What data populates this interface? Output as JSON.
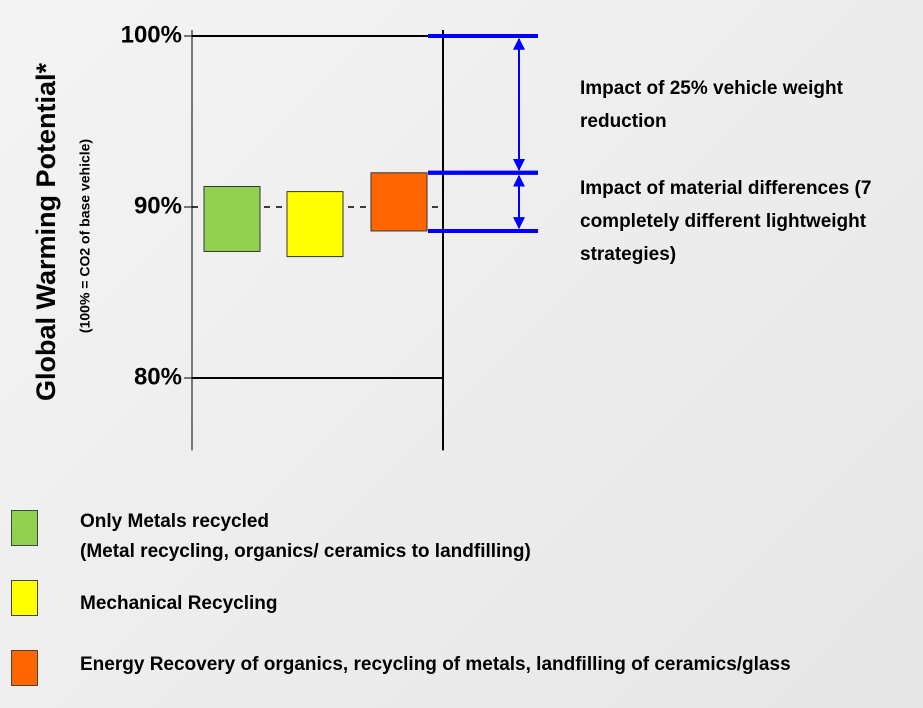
{
  "chart_data": {
    "type": "floating_bar",
    "y_label": "Global Warming Potential*",
    "y_sublabel": "(100% = CO2 of base vehicle)",
    "ylim": [
      76,
      100
    ],
    "yticks": [
      {
        "value": 100,
        "label": "100%",
        "line": "solid"
      },
      {
        "value": 90,
        "label": "90%",
        "line": "dashed"
      },
      {
        "value": 80,
        "label": "80%",
        "line": "solid"
      }
    ],
    "series": [
      {
        "name": "Only Metals recycled\n(Metal recycling, organics/ ceramics to landfilling)",
        "color": "#92d050",
        "low": 87.4,
        "high": 91.2
      },
      {
        "name": "Mechanical Recycling",
        "color": "#ffff00",
        "low": 87.1,
        "high": 90.9
      },
      {
        "name": "Energy Recovery of organics, recycling of metals, landfilling of ceramics/glass",
        "color": "#ff6600",
        "low": 88.6,
        "high": 92.0
      }
    ],
    "annotations": [
      {
        "text": "Impact of 25% vehicle weight reduction",
        "from": 100,
        "to": 92.0,
        "color": "#0000ff"
      },
      {
        "text": "Impact of material differences (7 completely different lightweight strategies)",
        "from": 92.0,
        "to": 88.6,
        "color": "#0000ff"
      }
    ]
  }
}
